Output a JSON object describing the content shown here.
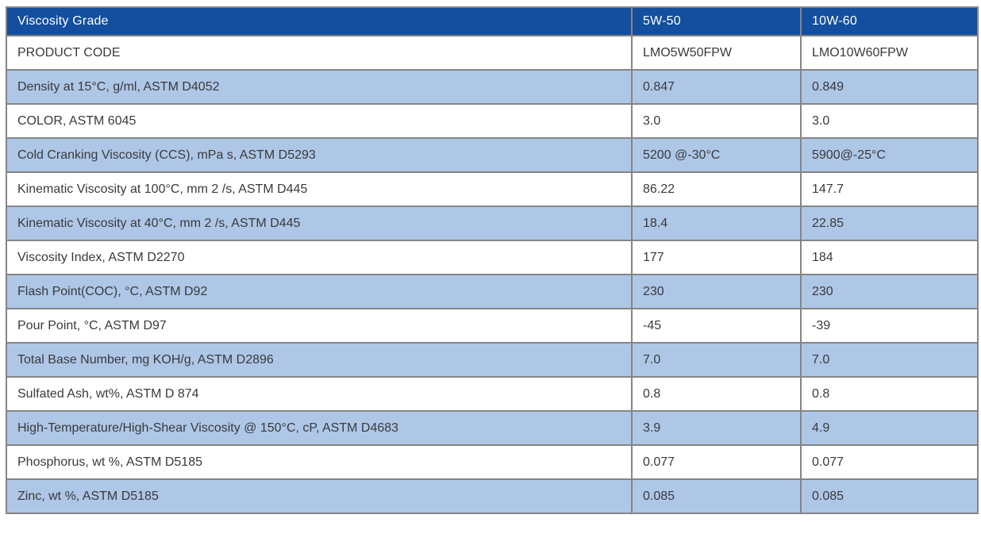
{
  "table": {
    "header": {
      "col1": "Viscosity Grade",
      "col2": "5W-50",
      "col3": "10W-60"
    },
    "rows": [
      {
        "label": "PRODUCT CODE",
        "v1": "LMO5W50FPW",
        "v2": "LMO10W60FPW"
      },
      {
        "label": "Density at 15°C, g/ml, ASTM D4052",
        "v1": "0.847",
        "v2": "0.849"
      },
      {
        "label": "COLOR, ASTM 6045",
        "v1": "3.0",
        "v2": "3.0"
      },
      {
        "label": "Cold Cranking Viscosity (CCS), mPa s, ASTM D5293",
        "v1": "5200 @-30°C",
        "v2": "5900@-25°C"
      },
      {
        "label": "Kinematic Viscosity at 100°C, mm 2 /s, ASTM D445",
        "v1": "86.22",
        "v2": "147.7"
      },
      {
        "label": "Kinematic Viscosity at 40°C, mm 2 /s, ASTM D445",
        "v1": "18.4",
        "v2": "22.85"
      },
      {
        "label": "Viscosity Index, ASTM D2270",
        "v1": "177",
        "v2": "184"
      },
      {
        "label": "Flash Point(COC), °C, ASTM D92",
        "v1": "230",
        "v2": "230"
      },
      {
        "label": "Pour Point, °C, ASTM D97",
        "v1": "-45",
        "v2": "-39"
      },
      {
        "label": "Total Base Number, mg KOH/g, ASTM D2896",
        "v1": "7.0",
        "v2": "7.0"
      },
      {
        "label": "Sulfated Ash, wt%, ASTM D 874",
        "v1": "0.8",
        "v2": "0.8"
      },
      {
        "label": "High-Temperature/High-Shear Viscosity @ 150°C, cP, ASTM D4683",
        "v1": "3.9",
        "v2": "4.9"
      },
      {
        "label": "Phosphorus, wt %, ASTM D5185",
        "v1": "0.077",
        "v2": "0.077"
      },
      {
        "label": "Zinc, wt %, ASTM D5185",
        "v1": "0.085",
        "v2": "0.085"
      }
    ],
    "colors": {
      "header_bg": "#134F9E",
      "header_text": "#FFFFFF",
      "stripe_bg": "#AEC7E7",
      "row_bg": "#FFFFFF",
      "border": "#858585",
      "text": "#3A3A3A"
    }
  }
}
